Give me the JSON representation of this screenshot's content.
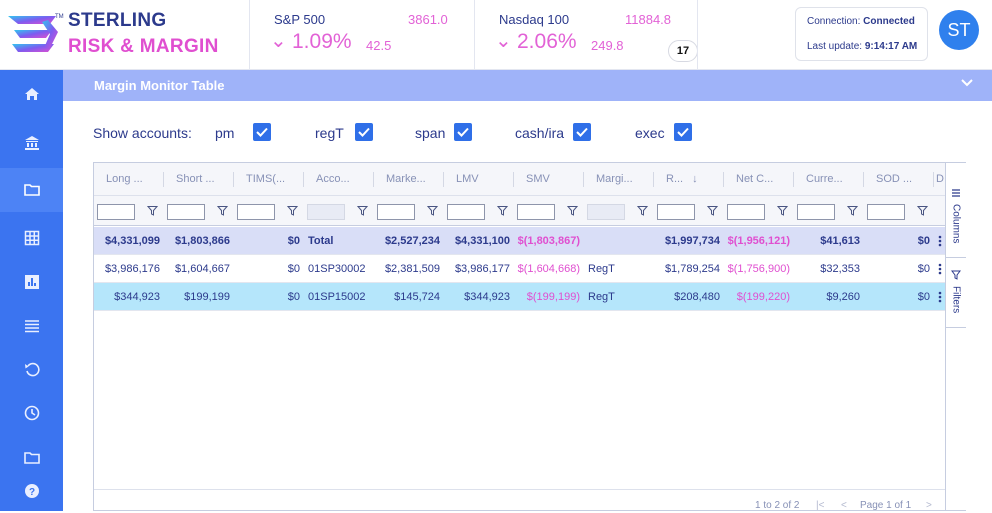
{
  "brand": {
    "line1": "STERLING",
    "line2": "RISK & MARGIN",
    "tm": "TM"
  },
  "tickers": [
    {
      "name": "S&P 500",
      "value": "3861.0",
      "pct": "1.09%",
      "change": "42.5",
      "direction": "down"
    },
    {
      "name": "Nasdaq 100",
      "value": "11884.8",
      "pct": "2.06%",
      "change": "249.8",
      "direction": "down"
    }
  ],
  "tv_badge": "17",
  "connection": {
    "label": "Connection:",
    "status": "Connected",
    "update_label": "Last update:",
    "update_time": "9:14:17 AM"
  },
  "user": {
    "initials": "ST"
  },
  "sidebar": {
    "items": [
      "home-icon",
      "bank-icon",
      "folder-icon",
      "grid-icon",
      "bar-chart-icon",
      "list-icon",
      "history-icon",
      "clock-icon",
      "folder-icon",
      "help-icon"
    ],
    "active_index": 2
  },
  "panel": {
    "title": "Margin Monitor Table"
  },
  "accounts": {
    "label": "Show accounts:",
    "options": [
      {
        "label": "pm",
        "checked": true
      },
      {
        "label": "regT",
        "checked": true
      },
      {
        "label": "span",
        "checked": true
      },
      {
        "label": "cash/ira",
        "checked": true
      },
      {
        "label": "exec",
        "checked": true
      }
    ]
  },
  "grid": {
    "columns": [
      "Long ...",
      "Short ...",
      "TIMS(...",
      "Acco...",
      "Marke...",
      "LMV",
      "SMV",
      "Margi...",
      "R...",
      "Net C...",
      "Curre...",
      "SOD ...",
      "D"
    ],
    "sort_column_index": 8,
    "rows": [
      {
        "type": "total",
        "cells": [
          "$4,331,099",
          "$1,803,866",
          "$0",
          "Total",
          "$2,527,234",
          "$4,331,100",
          "$(1,803,867)",
          "",
          "$1,997,734",
          "$(1,956,121)",
          "$41,613",
          "$0",
          ""
        ]
      },
      {
        "type": "normal",
        "cells": [
          "$3,986,176",
          "$1,604,667",
          "$0",
          "01SP30002",
          "$2,381,509",
          "$3,986,177",
          "$(1,604,668)",
          "RegT",
          "$1,789,254",
          "$(1,756,900)",
          "$32,353",
          "$0",
          ""
        ]
      },
      {
        "type": "selected",
        "cells": [
          "$344,923",
          "$199,199",
          "$0",
          "01SP15002",
          "$145,724",
          "$344,923",
          "$(199,199)",
          "RegT",
          "$208,480",
          "$(199,220)",
          "$9,260",
          "$0",
          ""
        ]
      }
    ],
    "side_tabs": [
      "Columns",
      "Filters"
    ],
    "pager": {
      "range": "1 to 2 of 2",
      "page": "Page 1 of 1"
    }
  },
  "colors": {
    "sidebar": "#3b74f0",
    "panel_header": "#9fb3f9",
    "accent_pink": "#e262d6",
    "navy": "#2c3a8c",
    "selected_row": "#b5e6fb",
    "total_row": "#d9def7"
  }
}
